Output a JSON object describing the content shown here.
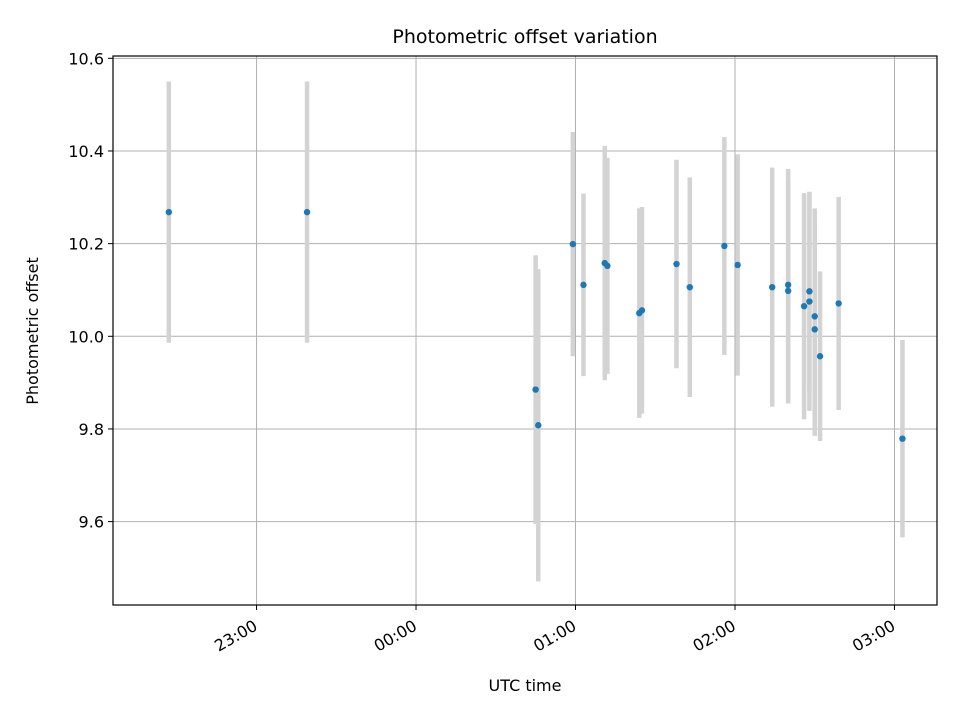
{
  "chart_data": {
    "type": "scatter",
    "title": "Photometric offset variation",
    "xlabel": "UTC time",
    "ylabel": "Photometric offset",
    "x_unit": "UTC time (HH:MM, previous evening before 00:00)",
    "xlim": [
      "22:06",
      "03:16"
    ],
    "ylim": [
      9.42,
      10.605
    ],
    "x_ticks": [
      "23:00",
      "00:00",
      "01:00",
      "02:00",
      "03:00"
    ],
    "y_ticks": [
      "9.6",
      "9.8",
      "10.0",
      "10.2",
      "10.4",
      "10.6"
    ],
    "grid": true,
    "colors": {
      "point": "#1f77b4",
      "errorbar": "#d3d3d3",
      "grid": "#b0b0b0"
    },
    "points": [
      {
        "x": "22:27",
        "y": 10.268,
        "err": 0.282
      },
      {
        "x": "23:19",
        "y": 10.268,
        "err": 0.282
      },
      {
        "x": "00:45",
        "y": 9.885,
        "err": 0.29
      },
      {
        "x": "00:46",
        "y": 9.808,
        "err": 0.337
      },
      {
        "x": "00:59",
        "y": 10.199,
        "err": 0.242
      },
      {
        "x": "01:03",
        "y": 10.111,
        "err": 0.197
      },
      {
        "x": "01:11",
        "y": 10.158,
        "err": 0.253
      },
      {
        "x": "01:12",
        "y": 10.152,
        "err": 0.233
      },
      {
        "x": "01:24",
        "y": 10.05,
        "err": 0.226
      },
      {
        "x": "01:25",
        "y": 10.056,
        "err": 0.223
      },
      {
        "x": "01:38",
        "y": 10.156,
        "err": 0.225
      },
      {
        "x": "01:43",
        "y": 10.106,
        "err": 0.237
      },
      {
        "x": "01:56",
        "y": 10.195,
        "err": 0.235
      },
      {
        "x": "02:01",
        "y": 10.154,
        "err": 0.239
      },
      {
        "x": "02:14",
        "y": 10.106,
        "err": 0.258
      },
      {
        "x": "02:20",
        "y": 10.111,
        "err": 0.25
      },
      {
        "x": "02:20",
        "y": 10.098,
        "err": 0.243
      },
      {
        "x": "02:26",
        "y": 10.065,
        "err": 0.244
      },
      {
        "x": "02:28",
        "y": 10.097,
        "err": 0.215
      },
      {
        "x": "02:28",
        "y": 10.075,
        "err": 0.236
      },
      {
        "x": "02:30",
        "y": 10.043,
        "err": 0.233
      },
      {
        "x": "02:30",
        "y": 10.015,
        "err": 0.23
      },
      {
        "x": "02:32",
        "y": 9.957,
        "err": 0.183
      },
      {
        "x": "02:39",
        "y": 10.071,
        "err": 0.23
      },
      {
        "x": "03:03",
        "y": 9.779,
        "err": 0.213
      }
    ]
  }
}
